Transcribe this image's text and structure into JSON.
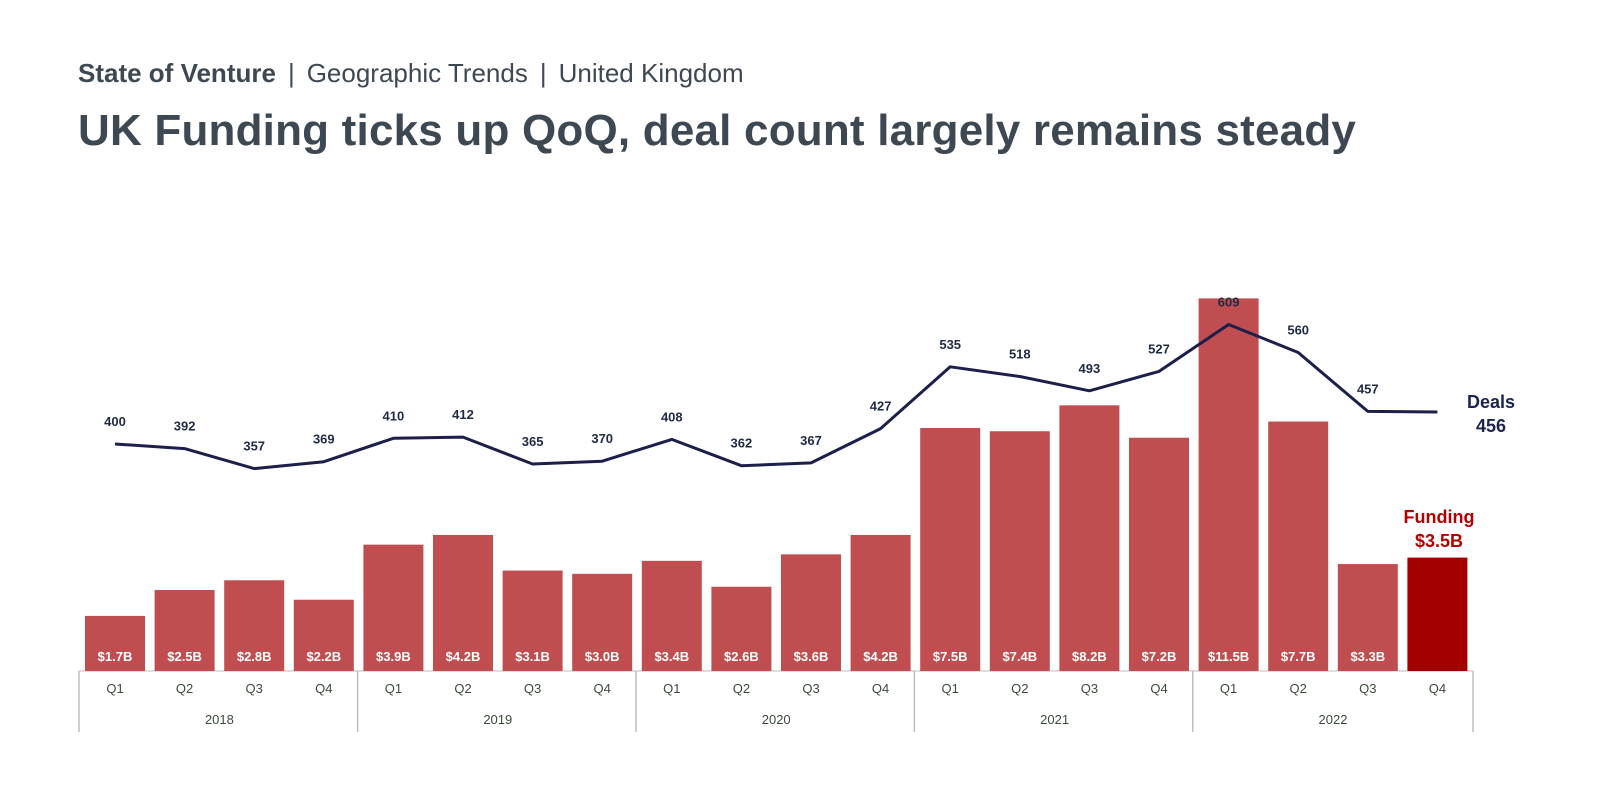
{
  "header": {
    "breadcrumb": [
      "State of Venture",
      "Geographic Trends",
      "United Kingdom"
    ],
    "title": "UK Funding ticks up QoQ, deal count largely remains steady"
  },
  "colors": {
    "bar": "#c04d4f",
    "bar_highlight": "#a30000",
    "line": "#1b1f4a",
    "title_text": "#3e4853",
    "funding_legend": "#b30000",
    "deals_legend": "#1b2450"
  },
  "chart_data": {
    "type": "bar",
    "title": "UK Funding ticks up QoQ, deal count largely remains steady",
    "xlabel": "",
    "ylabel": "",
    "categories": [
      "Q1 2018",
      "Q2 2018",
      "Q3 2018",
      "Q4 2018",
      "Q1 2019",
      "Q2 2019",
      "Q3 2019",
      "Q4 2019",
      "Q1 2020",
      "Q2 2020",
      "Q3 2020",
      "Q4 2020",
      "Q1 2021",
      "Q2 2021",
      "Q3 2021",
      "Q4 2021",
      "Q1 2022",
      "Q2 2022",
      "Q3 2022",
      "Q4 2022"
    ],
    "quarters": [
      "Q1",
      "Q2",
      "Q3",
      "Q4",
      "Q1",
      "Q2",
      "Q3",
      "Q4",
      "Q1",
      "Q2",
      "Q3",
      "Q4",
      "Q1",
      "Q2",
      "Q3",
      "Q4",
      "Q1",
      "Q2",
      "Q3",
      "Q4"
    ],
    "years": [
      "2018",
      "2019",
      "2020",
      "2021",
      "2022"
    ],
    "series": [
      {
        "name": "Funding",
        "type": "bar",
        "unit": "$B",
        "values": [
          1.7,
          2.5,
          2.8,
          2.2,
          3.9,
          4.2,
          3.1,
          3.0,
          3.4,
          2.6,
          3.6,
          4.2,
          7.5,
          7.4,
          8.2,
          7.2,
          11.5,
          7.7,
          3.3,
          3.5
        ],
        "labels": [
          "$1.7B",
          "$2.5B",
          "$2.8B",
          "$2.2B",
          "$3.9B",
          "$4.2B",
          "$3.1B",
          "$3.0B",
          "$3.4B",
          "$2.6B",
          "$3.6B",
          "$4.2B",
          "$7.5B",
          "$7.4B",
          "$8.2B",
          "$7.2B",
          "$11.5B",
          "$7.7B",
          "$3.3B",
          ""
        ]
      },
      {
        "name": "Deals",
        "type": "line",
        "values": [
          400,
          392,
          357,
          369,
          410,
          412,
          365,
          370,
          408,
          362,
          367,
          427,
          535,
          518,
          493,
          527,
          609,
          560,
          457,
          456
        ],
        "labels": [
          "400",
          "392",
          "357",
          "369",
          "410",
          "412",
          "365",
          "370",
          "408",
          "362",
          "367",
          "427",
          "535",
          "518",
          "493",
          "527",
          "609",
          "560",
          "457",
          ""
        ]
      }
    ],
    "legend": {
      "deals_title": "Deals",
      "deals_value": "456",
      "funding_title": "Funding",
      "funding_value": "$3.5B",
      "placement": "right"
    },
    "grid": false
  }
}
